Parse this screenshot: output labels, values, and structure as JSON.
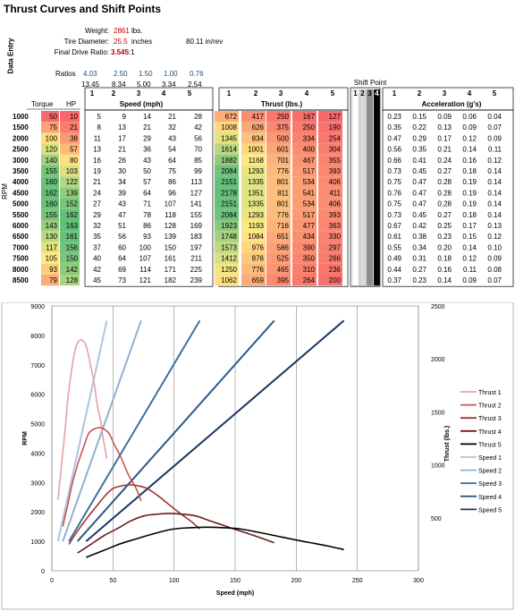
{
  "title": "Thrust Curves and Shift Points",
  "side_label": "Data Entry",
  "inputs": {
    "weight_label": "Weight:",
    "weight_value": "2861",
    "weight_unit": "lbs.",
    "tire_label": "Tire Diameter:",
    "tire_value": "25.5",
    "tire_unit": "inches",
    "tire_extra": "80.11 in/rev",
    "fdr_label": "Final Drive Ratio:",
    "fdr_value": "3.545",
    "fdr_unit": ":1"
  },
  "ratios_label": "Ratios",
  "ratios": [
    "4.03",
    "2.50",
    "1.50",
    "1.00",
    "0.76"
  ],
  "overall_ratios": [
    "13.45",
    "8.34",
    "5.00",
    "3.34",
    "2.54"
  ],
  "headers": {
    "torque": "Torque",
    "hp": "HP",
    "speed": "Speed (mph)",
    "thrust": "Thrust (lbs.)",
    "shift": "Shift Point",
    "accel": "Acceleration (g's)",
    "rpm": "RPM",
    "gears": [
      "1",
      "2",
      "3",
      "4",
      "5"
    ],
    "shift_gears": [
      "1",
      "2",
      "3",
      "4"
    ]
  },
  "table": {
    "rpm": [
      "1000",
      "1500",
      "2000",
      "2500",
      "3000",
      "3500",
      "4000",
      "4500",
      "5000",
      "5500",
      "6000",
      "6500",
      "7000",
      "7500",
      "8000",
      "8500"
    ],
    "torque": [
      "50",
      "75",
      "100",
      "120",
      "140",
      "155",
      "160",
      "162",
      "160",
      "155",
      "143",
      "130",
      "117",
      "105",
      "93",
      "79"
    ],
    "hp": [
      "10",
      "21",
      "38",
      "57",
      "80",
      "103",
      "122",
      "139",
      "152",
      "162",
      "163",
      "161",
      "156",
      "150",
      "142",
      "128"
    ],
    "speed": [
      [
        "5",
        "9",
        "14",
        "21",
        "28"
      ],
      [
        "8",
        "13",
        "21",
        "32",
        "42"
      ],
      [
        "11",
        "17",
        "29",
        "43",
        "56"
      ],
      [
        "13",
        "21",
        "36",
        "54",
        "70"
      ],
      [
        "16",
        "26",
        "43",
        "64",
        "85"
      ],
      [
        "19",
        "30",
        "50",
        "75",
        "99"
      ],
      [
        "21",
        "34",
        "57",
        "86",
        "113"
      ],
      [
        "24",
        "39",
        "64",
        "96",
        "127"
      ],
      [
        "27",
        "43",
        "71",
        "107",
        "141"
      ],
      [
        "29",
        "47",
        "78",
        "118",
        "155"
      ],
      [
        "32",
        "51",
        "86",
        "128",
        "169"
      ],
      [
        "35",
        "56",
        "93",
        "139",
        "183"
      ],
      [
        "37",
        "60",
        "100",
        "150",
        "197"
      ],
      [
        "40",
        "64",
        "107",
        "161",
        "211"
      ],
      [
        "42",
        "69",
        "114",
        "171",
        "225"
      ],
      [
        "45",
        "73",
        "121",
        "182",
        "239"
      ]
    ],
    "thrust": [
      [
        "672",
        "417",
        "250",
        "167",
        "127"
      ],
      [
        "1008",
        "626",
        "375",
        "250",
        "190"
      ],
      [
        "1345",
        "834",
        "500",
        "334",
        "254"
      ],
      [
        "1614",
        "1001",
        "601",
        "400",
        "304"
      ],
      [
        "1882",
        "1168",
        "701",
        "467",
        "355"
      ],
      [
        "2084",
        "1293",
        "776",
        "517",
        "393"
      ],
      [
        "2151",
        "1335",
        "801",
        "534",
        "406"
      ],
      [
        "2178",
        "1351",
        "811",
        "541",
        "411"
      ],
      [
        "2151",
        "1335",
        "801",
        "534",
        "406"
      ],
      [
        "2084",
        "1293",
        "776",
        "517",
        "393"
      ],
      [
        "1923",
        "1193",
        "716",
        "477",
        "363"
      ],
      [
        "1748",
        "1084",
        "651",
        "434",
        "330"
      ],
      [
        "1573",
        "976",
        "586",
        "390",
        "297"
      ],
      [
        "1412",
        "876",
        "525",
        "350",
        "266"
      ],
      [
        "1250",
        "776",
        "465",
        "310",
        "236"
      ],
      [
        "1062",
        "659",
        "395",
        "264",
        "200"
      ]
    ],
    "accel": [
      [
        "0.23",
        "0.15",
        "0.09",
        "0.06",
        "0.04"
      ],
      [
        "0.35",
        "0.22",
        "0.13",
        "0.09",
        "0.07"
      ],
      [
        "0.47",
        "0.29",
        "0.17",
        "0.12",
        "0.09"
      ],
      [
        "0.56",
        "0.35",
        "0.21",
        "0.14",
        "0.11"
      ],
      [
        "0.66",
        "0.41",
        "0.24",
        "0.16",
        "0.12"
      ],
      [
        "0.73",
        "0.45",
        "0.27",
        "0.18",
        "0.14"
      ],
      [
        "0.75",
        "0.47",
        "0.28",
        "0.19",
        "0.14"
      ],
      [
        "0.76",
        "0.47",
        "0.28",
        "0.19",
        "0.14"
      ],
      [
        "0.75",
        "0.47",
        "0.28",
        "0.19",
        "0.14"
      ],
      [
        "0.73",
        "0.45",
        "0.27",
        "0.18",
        "0.14"
      ],
      [
        "0.67",
        "0.42",
        "0.25",
        "0.17",
        "0.13"
      ],
      [
        "0.61",
        "0.38",
        "0.23",
        "0.15",
        "0.12"
      ],
      [
        "0.55",
        "0.34",
        "0.20",
        "0.14",
        "0.10"
      ],
      [
        "0.49",
        "0.31",
        "0.18",
        "0.12",
        "0.09"
      ],
      [
        "0.44",
        "0.27",
        "0.16",
        "0.11",
        "0.08"
      ],
      [
        "0.37",
        "0.23",
        "0.14",
        "0.09",
        "0.07"
      ]
    ]
  },
  "colors": {
    "thrust": [
      "#e8a2a2",
      "#c65555",
      "#a03434",
      "#6e1c1c",
      "#000000"
    ],
    "speed": [
      "#aec4de",
      "#8fb0d4",
      "#3e6f9e",
      "#2b5a87",
      "#17375e"
    ],
    "input_value": "#c00000",
    "ratio_value": "#1f4e79"
  },
  "chart_data": {
    "type": "line",
    "xlabel": "Speed (mph)",
    "ylabel": "RPM",
    "y2label": "Thrust (lbs.)",
    "xlim": [
      0,
      300
    ],
    "ylim": [
      0,
      9000
    ],
    "y2lim": [
      0,
      2500
    ],
    "xticks": [
      "0",
      "50",
      "100",
      "150",
      "200",
      "250",
      "300"
    ],
    "yticks": [
      "0",
      "1000",
      "2000",
      "3000",
      "4000",
      "5000",
      "6000",
      "7000",
      "8000",
      "9000"
    ],
    "y2ticks": [
      "500",
      "1000",
      "1500",
      "2000",
      "2500"
    ],
    "legend_position": "right",
    "series": [
      {
        "name": "Thrust 1",
        "axis": "y2",
        "x": [
          5,
          8,
          11,
          13,
          16,
          19,
          21,
          24,
          27,
          29,
          32,
          35,
          37,
          40,
          42,
          45
        ],
        "y": [
          672,
          1008,
          1345,
          1614,
          1882,
          2084,
          2151,
          2178,
          2151,
          2084,
          1923,
          1748,
          1573,
          1412,
          1250,
          1062
        ]
      },
      {
        "name": "Thrust 2",
        "axis": "y2",
        "x": [
          9,
          13,
          17,
          21,
          26,
          30,
          34,
          39,
          43,
          47,
          51,
          56,
          60,
          64,
          69,
          73
        ],
        "y": [
          417,
          626,
          834,
          1001,
          1168,
          1293,
          1335,
          1351,
          1335,
          1293,
          1193,
          1084,
          976,
          876,
          776,
          659
        ]
      },
      {
        "name": "Thrust 3",
        "axis": "y2",
        "x": [
          14,
          21,
          29,
          36,
          43,
          50,
          57,
          64,
          71,
          78,
          86,
          93,
          100,
          107,
          114,
          121
        ],
        "y": [
          250,
          375,
          500,
          601,
          701,
          776,
          801,
          811,
          801,
          776,
          716,
          651,
          586,
          525,
          465,
          395
        ]
      },
      {
        "name": "Thrust 4",
        "axis": "y2",
        "x": [
          21,
          32,
          43,
          54,
          64,
          75,
          86,
          96,
          107,
          118,
          128,
          139,
          150,
          161,
          171,
          182
        ],
        "y": [
          167,
          250,
          334,
          400,
          467,
          517,
          534,
          541,
          534,
          517,
          477,
          434,
          390,
          350,
          310,
          264
        ]
      },
      {
        "name": "Thrust 5",
        "axis": "y2",
        "x": [
          28,
          42,
          56,
          70,
          85,
          99,
          113,
          127,
          141,
          155,
          169,
          183,
          197,
          211,
          225,
          239
        ],
        "y": [
          127,
          190,
          254,
          304,
          355,
          393,
          406,
          411,
          406,
          393,
          363,
          330,
          297,
          266,
          236,
          200
        ]
      },
      {
        "name": "Speed 1",
        "axis": "y",
        "x": [
          5,
          45
        ],
        "y": [
          1000,
          8500
        ]
      },
      {
        "name": "Speed 2",
        "axis": "y",
        "x": [
          9,
          73
        ],
        "y": [
          1000,
          8500
        ]
      },
      {
        "name": "Speed 3",
        "axis": "y",
        "x": [
          14,
          121
        ],
        "y": [
          1000,
          8500
        ]
      },
      {
        "name": "Speed 4",
        "axis": "y",
        "x": [
          21,
          182
        ],
        "y": [
          1000,
          8500
        ]
      },
      {
        "name": "Speed 5",
        "axis": "y",
        "x": [
          28,
          239
        ],
        "y": [
          1000,
          8500
        ]
      }
    ]
  }
}
